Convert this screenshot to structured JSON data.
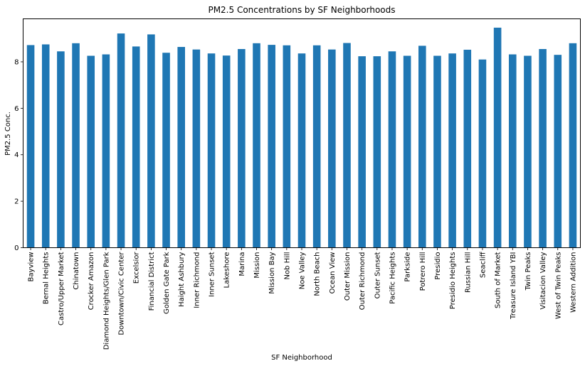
{
  "chart_data": {
    "type": "bar",
    "title": "PM2.5 Concentrations by SF Neighborhoods",
    "xlabel": "SF Neighborhood",
    "ylabel": "PM2.5 Conc.",
    "ylim": [
      0,
      9.85
    ],
    "yticks": [
      0,
      2,
      4,
      6,
      8
    ],
    "grid": false,
    "bar_color": "#1f77b4",
    "categories": [
      "Bayview",
      "Bernal Heights",
      "Castro/Upper Market",
      "Chinatown",
      "Crocker Amazon",
      "Diamond Heights/Glen Park",
      "Downtown/Civic Center",
      "Excelsior",
      "Financial District",
      "Golden Gate Park",
      "Haight Ashbury",
      "Inner Richmond",
      "Inner Sunset",
      "Lakeshore",
      "Marina",
      "Mission",
      "Mission Bay",
      "Nob Hill",
      "Noe Valley",
      "North Beach",
      "Ocean View",
      "Outer Mission",
      "Outer Richmond",
      "Outer Sunset",
      "Pacific Heights",
      "Parkside",
      "Potrero Hill",
      "Presidio",
      "Presidio Heights",
      "Russian Hill",
      "Seacliff",
      "South of Market",
      "Treasure Island YBI",
      "Twin Peaks",
      "Visitacion Valley",
      "West of Twin Peaks",
      "Western Addition"
    ],
    "values": [
      8.72,
      8.75,
      8.45,
      8.8,
      8.26,
      8.32,
      9.22,
      8.66,
      9.18,
      8.39,
      8.64,
      8.53,
      8.36,
      8.27,
      8.55,
      8.8,
      8.73,
      8.71,
      8.36,
      8.71,
      8.53,
      8.81,
      8.24,
      8.24,
      8.45,
      8.26,
      8.69,
      8.26,
      8.36,
      8.52,
      8.1,
      9.47,
      8.32,
      8.26,
      8.55,
      8.3,
      8.8
    ]
  }
}
